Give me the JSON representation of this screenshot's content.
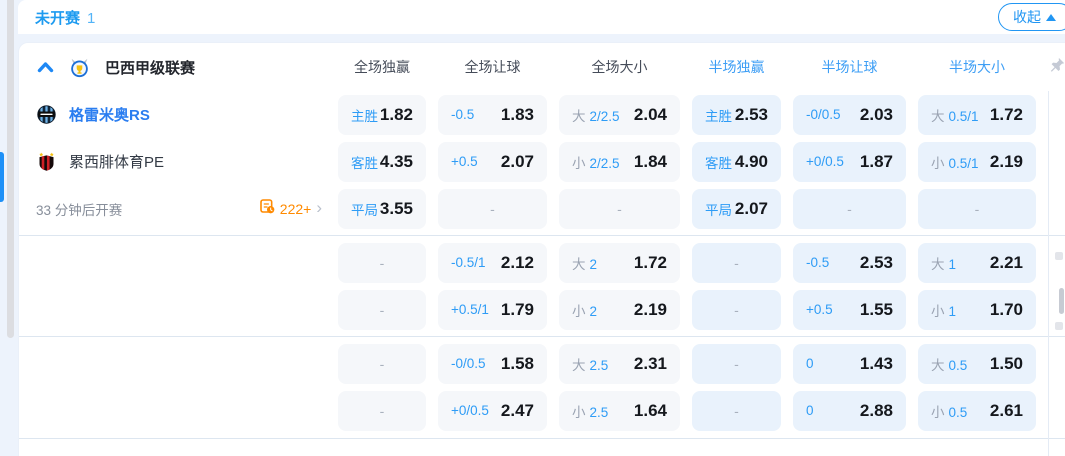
{
  "topbar": {
    "title": "未开赛",
    "count": "1",
    "collapse_label": "收起"
  },
  "league": {
    "name": "巴西甲级联赛",
    "columns": [
      {
        "label": "全场独赢",
        "scope": "full"
      },
      {
        "label": "全场让球",
        "scope": "full"
      },
      {
        "label": "全场大小",
        "scope": "full"
      },
      {
        "label": "半场独赢",
        "scope": "half"
      },
      {
        "label": "半场让球",
        "scope": "half"
      },
      {
        "label": "半场大小",
        "scope": "half"
      }
    ]
  },
  "match": {
    "home_team": "格雷米奥RS",
    "away_team": "累西腓体育PE",
    "start_note": "33 分钟后开赛",
    "more_markets": "222+"
  },
  "colors": {
    "accent_blue": "#2196f3",
    "label_blue": "#2e9cf6",
    "half_header_blue": "#3d9ef5",
    "odds_text": "#15181d",
    "gray_label": "#9aa3b2",
    "orange": "#ff8a00",
    "cell_full_bg": "#f5f7fa",
    "cell_half_bg": "#e9f2fc"
  },
  "odds": {
    "groups": [
      {
        "rows": [
          [
            {
              "type": "win",
              "label": "主胜",
              "value": "1.82"
            },
            {
              "type": "hcp",
              "label": "-0.5",
              "value": "1.83"
            },
            {
              "type": "ou",
              "side": "大",
              "line": "2/2.5",
              "value": "2.04"
            },
            {
              "type": "win",
              "label": "主胜",
              "value": "2.53"
            },
            {
              "type": "hcp",
              "label": "-0/0.5",
              "value": "2.03"
            },
            {
              "type": "ou",
              "side": "大",
              "line": "0.5/1",
              "value": "1.72"
            }
          ],
          [
            {
              "type": "win",
              "label": "客胜",
              "value": "4.35"
            },
            {
              "type": "hcp",
              "label": "+0.5",
              "value": "2.07"
            },
            {
              "type": "ou",
              "side": "小",
              "line": "2/2.5",
              "value": "1.84"
            },
            {
              "type": "win",
              "label": "客胜",
              "value": "4.90"
            },
            {
              "type": "hcp",
              "label": "+0/0.5",
              "value": "1.87"
            },
            {
              "type": "ou",
              "side": "小",
              "line": "0.5/1",
              "value": "2.19"
            }
          ],
          [
            {
              "type": "win",
              "label": "平局",
              "value": "3.55"
            },
            {
              "type": "dash"
            },
            {
              "type": "dash"
            },
            {
              "type": "win",
              "label": "平局",
              "value": "2.07"
            },
            {
              "type": "dash"
            },
            {
              "type": "dash"
            }
          ]
        ]
      },
      {
        "rows": [
          [
            {
              "type": "dash"
            },
            {
              "type": "hcp",
              "label": "-0.5/1",
              "value": "2.12"
            },
            {
              "type": "ou",
              "side": "大",
              "line": "2",
              "value": "1.72"
            },
            {
              "type": "dash"
            },
            {
              "type": "hcp",
              "label": "-0.5",
              "value": "2.53"
            },
            {
              "type": "ou",
              "side": "大",
              "line": "1",
              "value": "2.21"
            }
          ],
          [
            {
              "type": "dash"
            },
            {
              "type": "hcp",
              "label": "+0.5/1",
              "value": "1.79"
            },
            {
              "type": "ou",
              "side": "小",
              "line": "2",
              "value": "2.19"
            },
            {
              "type": "dash"
            },
            {
              "type": "hcp",
              "label": "+0.5",
              "value": "1.55"
            },
            {
              "type": "ou",
              "side": "小",
              "line": "1",
              "value": "1.70"
            }
          ]
        ]
      },
      {
        "rows": [
          [
            {
              "type": "dash"
            },
            {
              "type": "hcp",
              "label": "-0/0.5",
              "value": "1.58"
            },
            {
              "type": "ou",
              "side": "大",
              "line": "2.5",
              "value": "2.31"
            },
            {
              "type": "dash"
            },
            {
              "type": "hcp",
              "label": "0",
              "value": "1.43"
            },
            {
              "type": "ou",
              "side": "大",
              "line": "0.5",
              "value": "1.50"
            }
          ],
          [
            {
              "type": "dash"
            },
            {
              "type": "hcp",
              "label": "+0/0.5",
              "value": "2.47"
            },
            {
              "type": "ou",
              "side": "小",
              "line": "2.5",
              "value": "1.64"
            },
            {
              "type": "dash"
            },
            {
              "type": "hcp",
              "label": "0",
              "value": "2.88"
            },
            {
              "type": "ou",
              "side": "小",
              "line": "0.5",
              "value": "2.61"
            }
          ]
        ]
      }
    ]
  }
}
